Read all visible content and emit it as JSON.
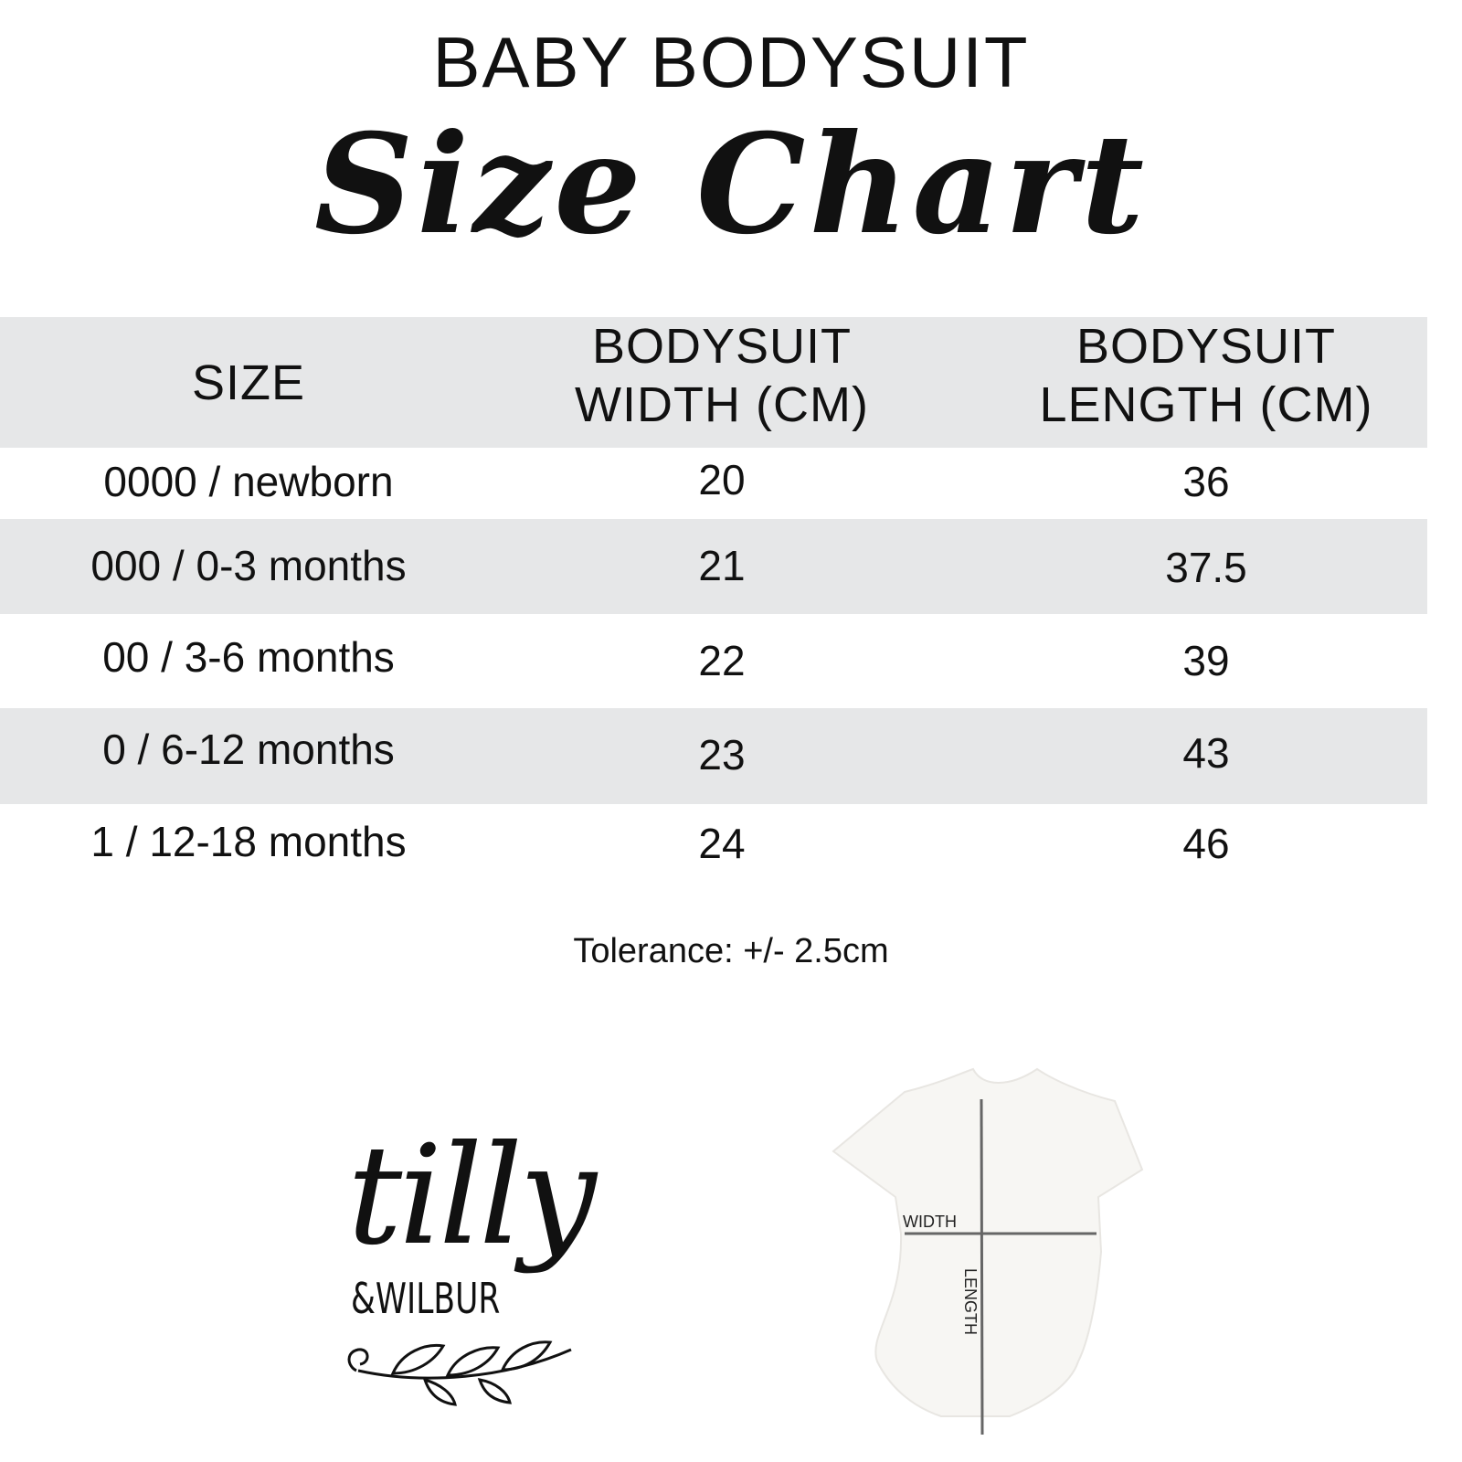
{
  "header": {
    "title": "BABY BODYSUIT",
    "subtitle": "Size Chart"
  },
  "table": {
    "columns": [
      "SIZE",
      "BODYSUIT WIDTH (CM)",
      "BODYSUIT LENGTH (CM)"
    ],
    "column_lines": [
      [
        "SIZE"
      ],
      [
        "BODYSUIT",
        "WIDTH (CM)"
      ],
      [
        "BODYSUIT",
        "LENGTH (CM)"
      ]
    ],
    "rows": [
      [
        "0000 / newborn",
        "20",
        "36"
      ],
      [
        "000 / 0-3 months",
        "21",
        "37.5"
      ],
      [
        "00 / 3-6 months",
        "22",
        "39"
      ],
      [
        "0 / 6-12 months",
        "23",
        "43"
      ],
      [
        "1 / 12-18 months",
        "24",
        "46"
      ]
    ],
    "band_color": "#e6e7e8"
  },
  "tolerance": "Tolerance: +/- 2.5cm",
  "logo": {
    "line1": "tilly",
    "line2": "&WILBUR"
  },
  "diagram": {
    "width_label": "WIDTH",
    "length_label": "LENGTH"
  }
}
